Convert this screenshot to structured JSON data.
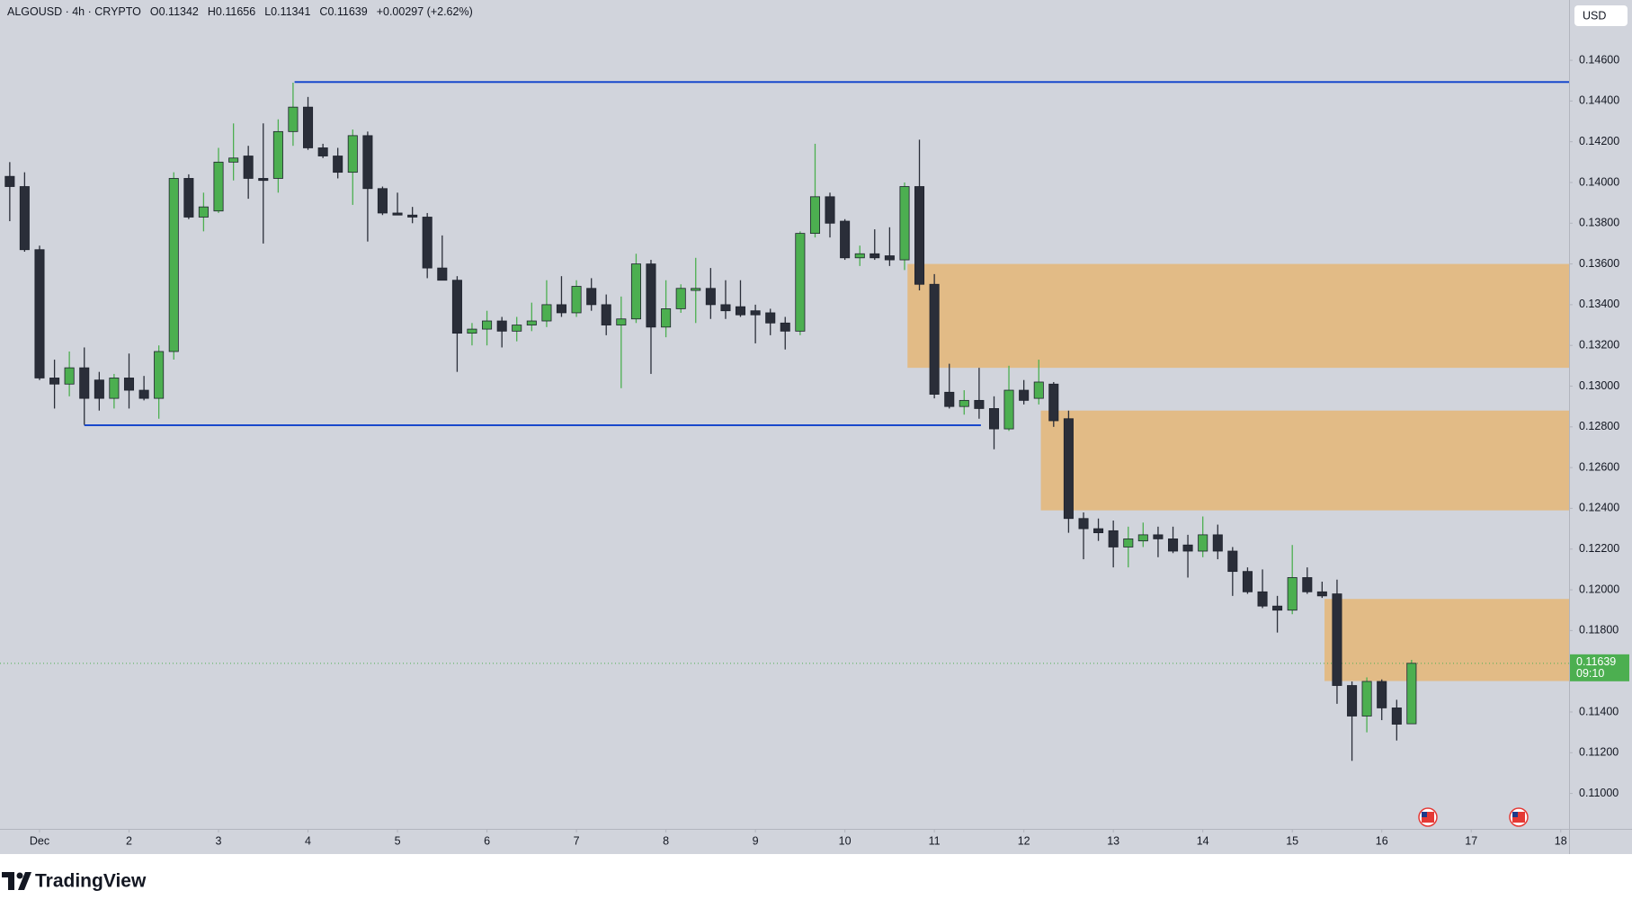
{
  "chart_data": {
    "type": "candlestick",
    "title": "ALGOUSD · 4h · CRYPTO",
    "ohlc_legend": [
      {
        "prefix": "O",
        "value": 0.11342
      },
      {
        "prefix": "H",
        "value": 0.11656
      },
      {
        "prefix": "L",
        "value": 0.11341
      },
      {
        "prefix": "C",
        "value": 0.11639
      }
    ],
    "change": "+0.00297 (+2.62%)",
    "currency": "USD",
    "x": [
      0.667,
      0.833,
      1,
      1.167,
      1.333,
      1.5,
      1.667,
      1.833,
      2,
      2.167,
      2.333,
      2.5,
      2.667,
      2.833,
      3,
      3.167,
      3.333,
      3.5,
      3.667,
      3.833,
      4,
      4.167,
      4.333,
      4.5,
      4.667,
      4.833,
      5,
      5.167,
      5.333,
      5.5,
      5.667,
      5.833,
      6,
      6.167,
      6.333,
      6.5,
      6.667,
      6.833,
      7,
      7.167,
      7.333,
      7.5,
      7.667,
      7.833,
      8,
      8.167,
      8.333,
      8.5,
      8.667,
      8.833,
      9,
      9.167,
      9.333,
      9.5,
      9.667,
      9.833,
      10,
      10.167,
      10.333,
      10.5,
      10.667,
      10.833,
      11,
      11.167,
      11.333,
      11.5,
      11.667,
      11.833,
      12,
      12.167,
      12.333,
      12.5,
      12.667,
      12.833,
      13,
      13.167,
      13.333,
      13.5,
      13.667,
      13.833,
      14,
      14.167,
      14.333,
      14.5,
      14.667,
      14.833,
      15,
      15.167,
      15.333,
      15.5,
      15.667,
      15.833,
      16,
      16.167,
      16.333
    ],
    "open": [
      0.1403,
      0.1398,
      0.1367,
      0.1304,
      0.1301,
      0.1309,
      0.1303,
      0.1294,
      0.1304,
      0.1298,
      0.1294,
      0.1317,
      0.1402,
      0.1383,
      0.1386,
      0.141,
      0.1413,
      0.1402,
      0.1402,
      0.1425,
      0.1437,
      0.1417,
      0.1413,
      0.1405,
      0.1423,
      0.1397,
      0.1385,
      0.1384,
      0.1383,
      0.1358,
      0.1352,
      0.1326,
      0.1328,
      0.1332,
      0.1327,
      0.133,
      0.1332,
      0.134,
      0.1336,
      0.1348,
      0.134,
      0.133,
      0.1333,
      0.136,
      0.1329,
      0.1338,
      0.1347,
      0.1348,
      0.134,
      0.1339,
      0.1337,
      0.1336,
      0.1331,
      0.1327,
      0.1375,
      0.1393,
      0.1381,
      0.1363,
      0.1365,
      0.1364,
      0.1362,
      0.1398,
      0.135,
      0.1297,
      0.129,
      0.1293,
      0.1289,
      0.1279,
      0.1298,
      0.1294,
      0.1301,
      0.1284,
      0.1235,
      0.123,
      0.1229,
      0.1221,
      0.1224,
      0.1227,
      0.1225,
      0.1222,
      0.1219,
      0.1227,
      0.1219,
      0.1209,
      0.1199,
      0.1192,
      0.119,
      0.1206,
      0.1199,
      0.1198,
      0.1153,
      0.1138,
      0.1155,
      0.1142,
      0.11342
    ],
    "high": [
      0.141,
      0.1405,
      0.1369,
      0.1313,
      0.1317,
      0.1319,
      0.1307,
      0.1306,
      0.1316,
      0.1305,
      0.132,
      0.1405,
      0.1404,
      0.1395,
      0.1417,
      0.1429,
      0.1418,
      0.1429,
      0.1431,
      0.1449,
      0.1442,
      0.1419,
      0.1417,
      0.1426,
      0.1425,
      0.1398,
      0.1395,
      0.1388,
      0.1385,
      0.1374,
      0.1354,
      0.1331,
      0.1337,
      0.1334,
      0.1334,
      0.1341,
      0.1352,
      0.1354,
      0.1352,
      0.1353,
      0.1345,
      0.1344,
      0.1365,
      0.1362,
      0.1352,
      0.135,
      0.1363,
      0.1358,
      0.1352,
      0.1352,
      0.134,
      0.1338,
      0.1334,
      0.1376,
      0.1419,
      0.1395,
      0.1382,
      0.1369,
      0.1377,
      0.1378,
      0.14,
      0.1421,
      0.1355,
      0.1311,
      0.1298,
      0.1309,
      0.1295,
      0.131,
      0.1303,
      0.1313,
      0.1302,
      0.1288,
      0.1238,
      0.1235,
      0.1234,
      0.1231,
      0.1233,
      0.1231,
      0.1231,
      0.1227,
      0.1236,
      0.1232,
      0.1221,
      0.1211,
      0.121,
      0.1197,
      0.1222,
      0.1211,
      0.1204,
      0.1205,
      0.1155,
      0.1157,
      0.1156,
      0.1146,
      0.11656
    ],
    "low": [
      0.1381,
      0.1366,
      0.1303,
      0.1289,
      0.1295,
      0.1281,
      0.1288,
      0.1289,
      0.1289,
      0.1293,
      0.1284,
      0.1313,
      0.1382,
      0.1376,
      0.1385,
      0.1401,
      0.1392,
      0.137,
      0.1395,
      0.1418,
      0.1416,
      0.1412,
      0.1402,
      0.1389,
      0.1371,
      0.1384,
      0.1384,
      0.138,
      0.1353,
      0.1352,
      0.1307,
      0.132,
      0.132,
      0.1319,
      0.1322,
      0.1327,
      0.1329,
      0.1334,
      0.1334,
      0.1337,
      0.1325,
      0.1299,
      0.1331,
      0.1306,
      0.1324,
      0.1336,
      0.1331,
      0.1333,
      0.1333,
      0.1334,
      0.1321,
      0.1325,
      0.1318,
      0.1325,
      0.1373,
      0.1373,
      0.1362,
      0.1359,
      0.1362,
      0.1359,
      0.1357,
      0.1347,
      0.1294,
      0.1289,
      0.1286,
      0.1284,
      0.1269,
      0.1278,
      0.1291,
      0.1291,
      0.128,
      0.1228,
      0.1215,
      0.1224,
      0.1211,
      0.1211,
      0.1221,
      0.1216,
      0.1218,
      0.1206,
      0.1216,
      0.1215,
      0.1197,
      0.1198,
      0.1191,
      0.1179,
      0.1188,
      0.1198,
      0.1196,
      0.1144,
      0.1116,
      0.113,
      0.1136,
      0.1126,
      0.11341
    ],
    "close": [
      0.1398,
      0.1367,
      0.1304,
      0.1301,
      0.1309,
      0.1294,
      0.1294,
      0.1304,
      0.1298,
      0.1294,
      0.1317,
      0.1402,
      0.1383,
      0.1388,
      0.141,
      0.1412,
      0.1402,
      0.1401,
      0.1425,
      0.1437,
      0.1417,
      0.1413,
      0.1405,
      0.1423,
      0.1397,
      0.1385,
      0.1384,
      0.1383,
      0.1358,
      0.1352,
      0.1326,
      0.1328,
      0.1332,
      0.1327,
      0.133,
      0.1332,
      0.134,
      0.1336,
      0.1349,
      0.134,
      0.133,
      0.1333,
      0.136,
      0.1329,
      0.1338,
      0.1348,
      0.1348,
      0.134,
      0.1337,
      0.1335,
      0.1335,
      0.1331,
      0.1327,
      0.1375,
      0.1393,
      0.138,
      0.1363,
      0.1365,
      0.1363,
      0.1362,
      0.1398,
      0.135,
      0.1296,
      0.129,
      0.1293,
      0.1289,
      0.1279,
      0.1298,
      0.1293,
      0.1302,
      0.1283,
      0.1235,
      0.123,
      0.1228,
      0.1221,
      0.1225,
      0.1227,
      0.1225,
      0.1219,
      0.1219,
      0.1227,
      0.1219,
      0.1209,
      0.1199,
      0.1192,
      0.119,
      0.1206,
      0.1199,
      0.1197,
      0.1153,
      0.1138,
      0.1155,
      0.1142,
      0.1134,
      0.11639
    ],
    "up_color": "#4caf50",
    "down_color": "#2a2e39",
    "xlim": [
      0.558,
      18.093
    ],
    "xticks": [
      {
        "value": 1,
        "label": "Dec"
      },
      2,
      3,
      4,
      5,
      6,
      7,
      8,
      9,
      10,
      11,
      12,
      13,
      14,
      15,
      16,
      17,
      18
    ],
    "ylim": [
      0.10826,
      0.14896
    ],
    "yticks": [
      {
        "value": 0.11,
        "label": "0.11000"
      },
      {
        "value": 0.112,
        "label": "0.11200"
      },
      {
        "value": 0.114,
        "label": "0.11400"
      },
      {
        "value": 0.116,
        "label": "0.11600"
      },
      {
        "value": 0.118,
        "label": "0.11800"
      },
      {
        "value": 0.12,
        "label": "0.12000"
      },
      {
        "value": 0.122,
        "label": "0.12200"
      },
      {
        "value": 0.124,
        "label": "0.12400"
      },
      {
        "value": 0.126,
        "label": "0.12600"
      },
      {
        "value": 0.128,
        "label": "0.12800"
      },
      {
        "value": 0.13,
        "label": "0.13000"
      },
      {
        "value": 0.132,
        "label": "0.13200"
      },
      {
        "value": 0.134,
        "label": "0.13400"
      },
      {
        "value": 0.136,
        "label": "0.13600"
      },
      {
        "value": 0.138,
        "label": "0.13800"
      },
      {
        "value": 0.14,
        "label": "0.14000"
      },
      {
        "value": 0.142,
        "label": "0.14200"
      },
      {
        "value": 0.144,
        "label": "0.14400"
      },
      {
        "value": 0.146,
        "label": "0.14600"
      }
    ],
    "zones": [
      {
        "x0": 10.7,
        "top": 0.136,
        "bottom": 0.1309
      },
      {
        "x0": 12.19,
        "top": 0.1288,
        "bottom": 0.1239
      },
      {
        "x0": 15.36,
        "top": 0.11955,
        "bottom": 0.11552
      }
    ],
    "zone_color": "#e2bb86",
    "levels": [
      {
        "value": 0.14493,
        "x0": 3.85
      },
      {
        "value": 0.12808,
        "x0": 1.5,
        "x1": 11.52
      }
    ],
    "level_color": "#1848cc",
    "last_price": {
      "value": 0.11639,
      "label": "0.11639"
    },
    "countdown": "09:10",
    "last_price_color": "#4caf50"
  },
  "branding": "TradingView"
}
